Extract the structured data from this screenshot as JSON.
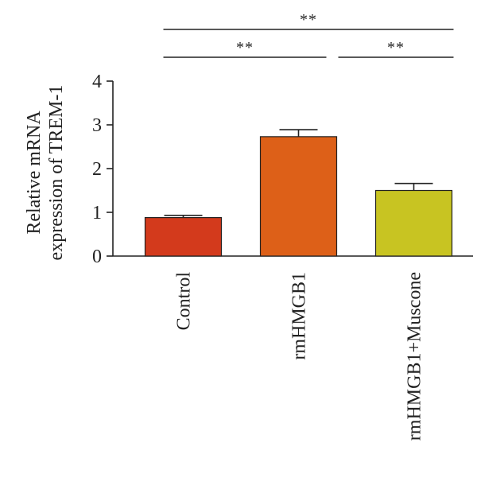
{
  "chart_data": {
    "type": "bar",
    "title": "",
    "xlabel": "",
    "ylabel_lines": [
      "Relative mRNA",
      "expression of TREM-1"
    ],
    "ylim": [
      0,
      4
    ],
    "yticks": [
      0,
      1,
      2,
      3,
      4
    ],
    "categories": [
      "Control",
      "rmHMGB1",
      "rmHMGB1+Muscone"
    ],
    "values": [
      0.88,
      2.73,
      1.5
    ],
    "errors": [
      0.05,
      0.16,
      0.16
    ],
    "colors": [
      "#d33a1c",
      "#dd6018",
      "#c8c422"
    ],
    "significance": [
      {
        "from": 0,
        "to": 1,
        "label": "**",
        "level": 1
      },
      {
        "from": 1,
        "to": 2,
        "label": "**",
        "level": 1
      },
      {
        "from": 0,
        "to": 2,
        "label": "**",
        "level": 2
      }
    ]
  }
}
